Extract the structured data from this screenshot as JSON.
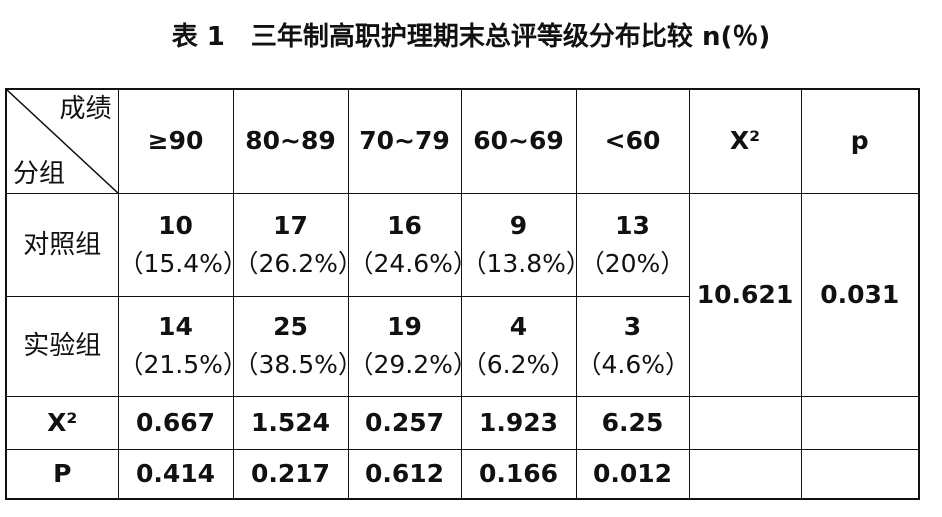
{
  "header": {
    "title": "表 1　三年制高职护理期末总评等级分布比较 n(％)"
  },
  "table": {
    "corner": {
      "top": "成绩",
      "bottom": "分组"
    },
    "columns": [
      "≥90",
      "80~89",
      "70~79",
      "60~69",
      "<60"
    ],
    "chi2_header": "X²",
    "p_header": "p",
    "rows": [
      {
        "group": "对照组",
        "cells": [
          [
            "10",
            "（15.4%）"
          ],
          [
            "17",
            "（26.2%）"
          ],
          [
            "16",
            "（24.6%）"
          ],
          [
            "9",
            "（13.8%）"
          ],
          [
            "13",
            "（20%）"
          ]
        ]
      },
      {
        "group": "实验组",
        "cells": [
          [
            "14",
            "（21.5%）"
          ],
          [
            "25",
            "（38.5%）"
          ],
          [
            "19",
            "（29.2%）"
          ],
          [
            "4",
            "（6.2%）"
          ],
          [
            "3",
            "（4.6%）"
          ]
        ]
      }
    ],
    "chi2": "10.621",
    "p": "0.031",
    "stat_rows": [
      {
        "label": "X²",
        "values": [
          "0.667",
          "1.524",
          "0.257",
          "1.923",
          "6.25"
        ]
      },
      {
        "label": "P",
        "values": [
          "0.414",
          "0.217",
          "0.612",
          "0.166",
          "0.012"
        ]
      }
    ]
  }
}
